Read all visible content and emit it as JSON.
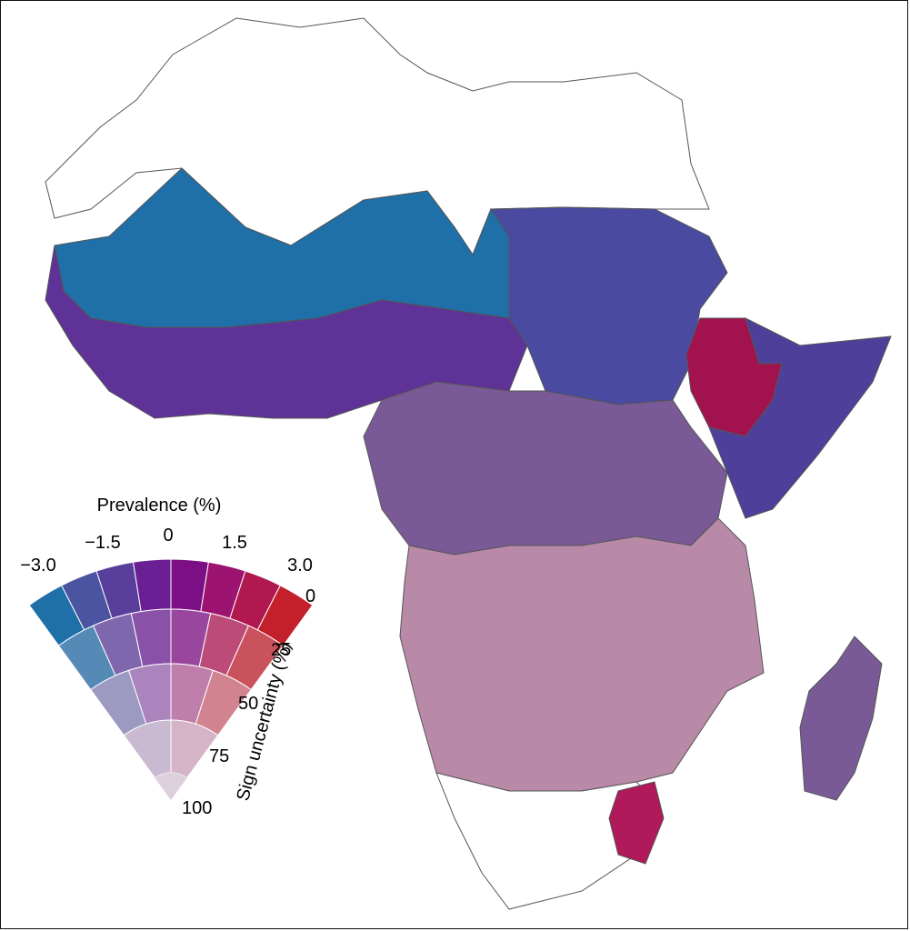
{
  "legend": {
    "prevalence_title": "Prevalence (%)",
    "prevalence_ticks": [
      "−3.0",
      "−1.5",
      "0",
      "1.5",
      "3.0"
    ],
    "uncertainty_title": "Sign uncertainty (%)",
    "uncertainty_ticks": [
      "0",
      "25",
      "50",
      "75",
      "100"
    ],
    "palette": {
      "low": "#1f6fa8",
      "mid_low": "#4a54a0",
      "center": "#6a1f94",
      "mid_high": "#9c1370",
      "high": "#c3202b",
      "faded": "#dcd0dc"
    }
  },
  "map": {
    "colors": {
      "no_data": "#ffffff",
      "border": "#555555",
      "sahel_blue": "#1f6fa8",
      "west_africa": "#4a4aa0",
      "coastal_purple": "#5e3296",
      "ethiopia_red": "#a2124f",
      "east_africa": "#4d3f9a",
      "central_mauve": "#7a5a96",
      "southern_pink": "#b88aa8",
      "pale": "#d8c8d8",
      "magenta": "#b0195a"
    }
  }
}
